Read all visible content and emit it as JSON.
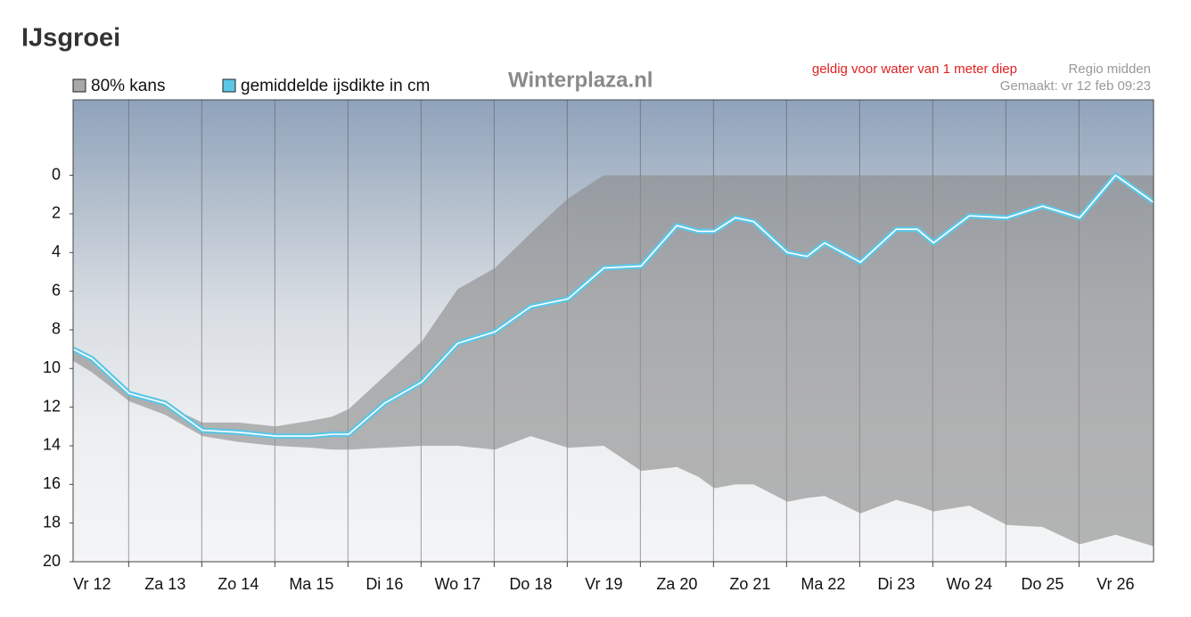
{
  "header": {
    "title": "IJsgroei"
  },
  "chart_data": {
    "type": "line",
    "watermark": "Winterplaza.nl",
    "annotation": "geldig voor water van 1 meter diep",
    "region": "Regio midden",
    "made": "Gemaakt: vr 12 feb 09:23",
    "x": [
      -0.26,
      0,
      0.51,
      1.0,
      1.51,
      2.0,
      2.51,
      3.0,
      3.28,
      3.51,
      4.0,
      4.51,
      5.0,
      5.51,
      6.0,
      6.51,
      7.0,
      7.51,
      8.0,
      8.29,
      8.51,
      8.8,
      9.05,
      9.51,
      9.78,
      10.02,
      10.51,
      11.0,
      11.29,
      11.51,
      12.0,
      12.51,
      13.0,
      13.51,
      14.0,
      14.52
    ],
    "series": [
      {
        "name": "80% kans",
        "color": "#8a8a8a",
        "low": [
          9.1,
          9.6,
          11.3,
          11.9,
          12.8,
          12.8,
          13.0,
          12.7,
          12.5,
          12.1,
          10.4,
          8.6,
          5.9,
          4.8,
          3.0,
          1.2,
          0,
          0,
          0,
          0,
          0,
          0,
          0,
          0,
          0,
          0,
          0,
          0,
          0,
          0,
          0,
          0,
          0,
          0,
          0,
          0
        ],
        "high": [
          9.6,
          10.2,
          11.7,
          12.4,
          13.5,
          13.8,
          14.0,
          14.1,
          14.2,
          14.2,
          14.1,
          14.0,
          14.0,
          14.2,
          13.5,
          14.1,
          14.0,
          15.3,
          15.1,
          15.6,
          16.2,
          16.0,
          16.0,
          16.9,
          16.7,
          16.6,
          17.5,
          16.8,
          17.1,
          17.4,
          17.1,
          18.1,
          18.2,
          19.1,
          18.6,
          19.2
        ]
      },
      {
        "name": "gemiddelde ijsdikte in cm",
        "color": "#5cc6e6",
        "values": [
          9.0,
          9.5,
          11.3,
          11.8,
          13.2,
          13.3,
          13.5,
          13.5,
          13.4,
          13.4,
          11.8,
          10.7,
          8.7,
          8.1,
          6.8,
          6.4,
          4.8,
          4.7,
          2.6,
          2.9,
          2.9,
          2.2,
          2.4,
          4.0,
          4.2,
          3.5,
          4.5,
          2.8,
          2.8,
          3.5,
          2.1,
          2.2,
          1.6,
          2.2,
          0.0,
          1.4
        ]
      }
    ],
    "xlim": [
      -0.26,
      14.52
    ],
    "xticks": [
      {
        "value": 0,
        "label": "Vr 12"
      },
      {
        "value": 1,
        "label": "Za 13"
      },
      {
        "value": 2,
        "label": "Zo 14"
      },
      {
        "value": 3,
        "label": "Ma 15"
      },
      {
        "value": 4,
        "label": "Di 16"
      },
      {
        "value": 5,
        "label": "Wo 17"
      },
      {
        "value": 6,
        "label": "Do 18"
      },
      {
        "value": 7,
        "label": "Vr 19"
      },
      {
        "value": 8,
        "label": "Za 20"
      },
      {
        "value": 9,
        "label": "Zo 21"
      },
      {
        "value": 10,
        "label": "Ma 22"
      },
      {
        "value": 11,
        "label": "Di 23"
      },
      {
        "value": 12,
        "label": "Wo 24"
      },
      {
        "value": 13,
        "label": "Do 25"
      },
      {
        "value": 14,
        "label": "Vr 26"
      }
    ],
    "xgrid": [
      0.5,
      1.5,
      2.5,
      3.5,
      4.5,
      5.5,
      6.5,
      7.5,
      8.5,
      9.5,
      10.5,
      11.5,
      12.5,
      13.5
    ],
    "ylim": [
      -3.9,
      20
    ],
    "y_inverted": true,
    "yticks": [
      0,
      2,
      4,
      6,
      8,
      10,
      12,
      14,
      16,
      18,
      20
    ]
  }
}
